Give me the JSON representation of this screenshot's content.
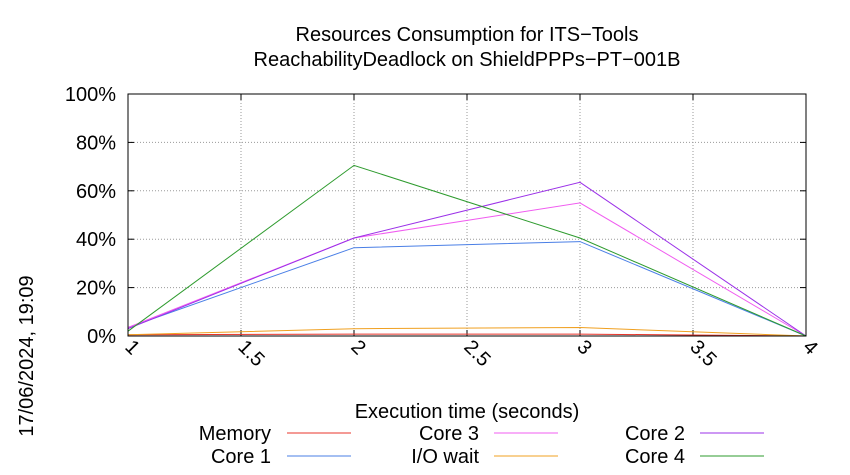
{
  "chart_data": {
    "type": "line",
    "title": [
      "Resources Consumption for ITS−Tools",
      "ReachabilityDeadlock on ShieldPPPs−PT−001B"
    ],
    "xlabel": "Execution time (seconds)",
    "ylabel": "",
    "xlim": [
      1,
      4
    ],
    "ylim": [
      0,
      100
    ],
    "xticks": [
      "1",
      "1.5",
      "2",
      "2.5",
      "3",
      "3.5",
      "4"
    ],
    "yticks": [
      "0%",
      "20%",
      "40%",
      "60%",
      "80%",
      "100%"
    ],
    "grid": true,
    "legend_position": "bottom",
    "x": [
      1,
      2,
      3,
      4
    ],
    "series": [
      {
        "name": "Memory",
        "color": "#e8352b",
        "values": [
          0.5,
          0.8,
          0.8,
          0
        ]
      },
      {
        "name": "Core 1",
        "color": "#4a7fe6",
        "values": [
          3.5,
          36.5,
          39,
          0
        ]
      },
      {
        "name": "Core 3",
        "color": "#f05cf0",
        "values": [
          3.5,
          40.5,
          55,
          0
        ]
      },
      {
        "name": "I/O wait",
        "color": "#f0a020",
        "values": [
          0.5,
          3,
          3.5,
          0
        ]
      },
      {
        "name": "Core 2",
        "color": "#9b30e8",
        "values": [
          3,
          40.5,
          63.5,
          0
        ]
      },
      {
        "name": "Core 4",
        "color": "#2e9b2e",
        "values": [
          2,
          70.5,
          40.5,
          0
        ]
      }
    ]
  },
  "timestamp": "17/06/2024, 19:09"
}
